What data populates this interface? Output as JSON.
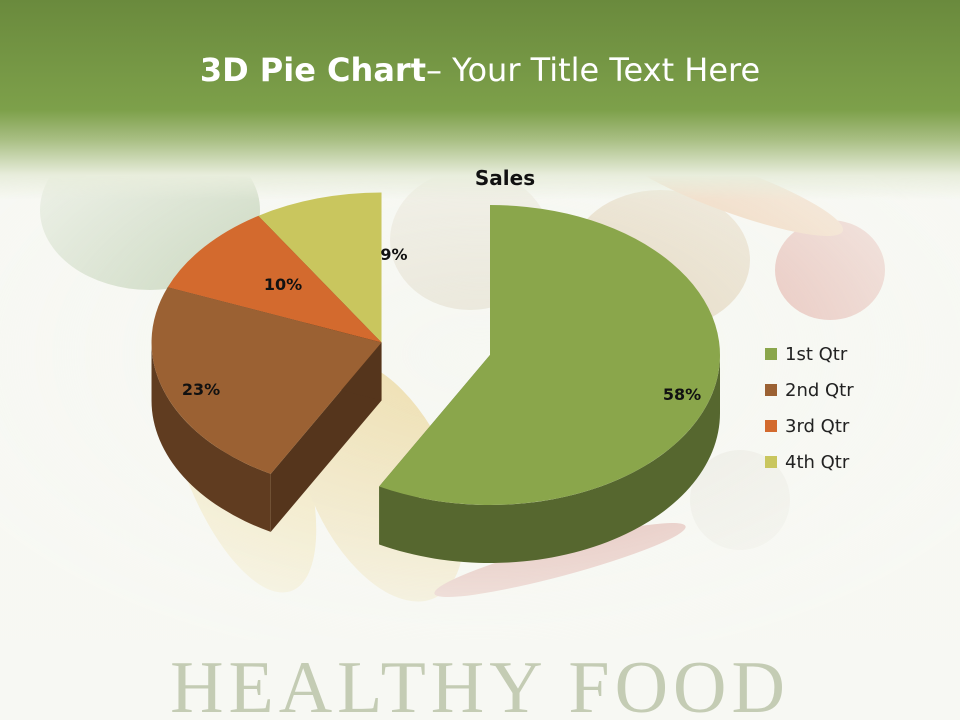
{
  "slide": {
    "title_bold": "3D Pie Chart",
    "title_rest": "– Your Title Text Here",
    "footer": "HEALTHY FOOD"
  },
  "colors": {
    "header": "#7da04a",
    "q1": "#8aa64b",
    "q2": "#9b6133",
    "q3": "#d36a2e",
    "q4": "#c9c65e"
  },
  "chart_data": {
    "type": "pie",
    "style": "3d-exploded",
    "title": "Sales",
    "categories": [
      "1st Qtr",
      "2nd Qtr",
      "3rd Qtr",
      "4th Qtr"
    ],
    "values": [
      58,
      23,
      10,
      9
    ],
    "labels": [
      "58%",
      "23%",
      "10%",
      "9%"
    ],
    "legend_position": "right"
  }
}
